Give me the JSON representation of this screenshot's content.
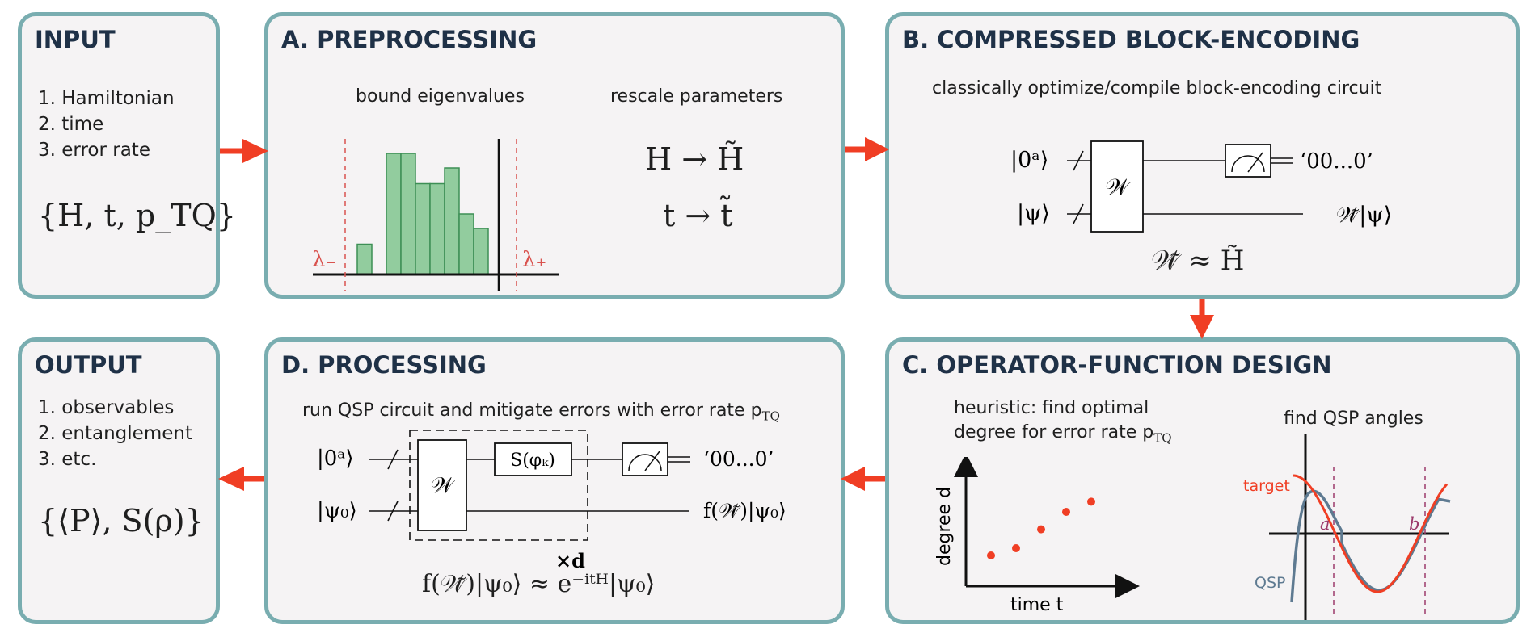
{
  "input": {
    "title": "INPUT",
    "items": [
      "1. Hamiltonian",
      "2. time",
      "3. error rate"
    ],
    "formula": "{H, t, p_TQ}"
  },
  "preprocessing": {
    "title": "A. PREPROCESSING",
    "bound_label": "bound eigenvalues",
    "rescale_label": "rescale parameters",
    "lambda_minus": "λ₋",
    "lambda_plus": "λ₊",
    "eq_h": "H → H̃",
    "eq_t": "t → t̃",
    "histogram_values": [
      0.25,
      1.0,
      1.0,
      0.75,
      0.75,
      0.88,
      0.5,
      0.38
    ]
  },
  "compressed": {
    "title": "B. COMPRESSED BLOCK-ENCODING",
    "subtitle": "classically optimize/compile block-encoding circuit",
    "ket0": "|0ᵃ⟩",
    "ketpsi": "|ψ⟩",
    "gate": "𝒲",
    "out_top": "‘00...0’",
    "out_bottom": "𝒲̃|ψ⟩",
    "approx": "𝒲̃ ≈ H̃"
  },
  "operator": {
    "title": "C. OPERATOR-FUNCTION DESIGN",
    "heuristic_line1": "heuristic: find optimal",
    "heuristic_line2": "degree for error rate p",
    "heuristic_sub": "TQ",
    "find_angles": "find QSP angles",
    "ylabel": "degree d",
    "xlabel": "time t",
    "target_label": "target",
    "qsp_label": "QSP",
    "a_label": "a",
    "b_label": "b",
    "points": [
      [
        1,
        1
      ],
      [
        2,
        1.5
      ],
      [
        3,
        2.8
      ],
      [
        4,
        4.0
      ],
      [
        5,
        4.7
      ]
    ]
  },
  "processing": {
    "title": "D. PROCESSING",
    "subtitle": "run QSP circuit and mitigate errors with error rate p",
    "subtitle_sub": "TQ",
    "ket0": "|0ᵃ⟩",
    "ketpsi0": "|ψ₀⟩",
    "gate_w": "𝒲",
    "gate_s": "S(φₖ)",
    "out_top": "‘00...0’",
    "out_bottom": "f(𝒲̃)|ψ₀⟩",
    "times_d": "×d",
    "approx": "f(𝒲̃)|ψ₀⟩ ≈ e⁻ⁱᵗᴴ|ψ₀⟩"
  },
  "output": {
    "title": "OUTPUT",
    "items": [
      "1. observables",
      "2. entanglement",
      "3. etc."
    ],
    "formula": "{⟨P⟩, S(ρ)}"
  },
  "colors": {
    "border": "#79adb0",
    "panel_bg": "#f5f3f4",
    "title": "#1f3147",
    "arrow": "#f03e24",
    "bar_fill": "#92cc9e",
    "bar_stroke": "#3d8f55",
    "lambda": "#d9534f",
    "qsp_curve": "#5e7a91",
    "ab_lines": "#9c3a6b"
  }
}
